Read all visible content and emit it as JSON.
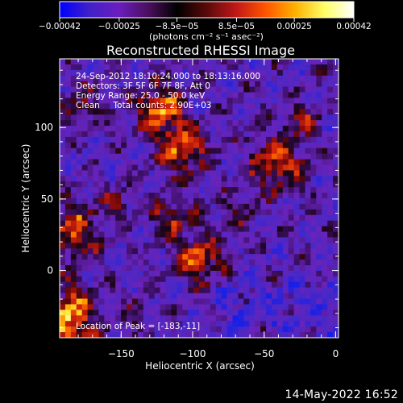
{
  "chart_data": {
    "type": "heatmap",
    "title": "Reconstructed RHESSI Image",
    "xlabel": "Heliocentric X (arcsec)",
    "ylabel": "Heliocentric Y (arcsec)",
    "xlim": [
      -193,
      2
    ],
    "ylim": [
      -47,
      148
    ],
    "xticks": [
      {
        "value": -150,
        "label": "−150"
      },
      {
        "value": -100,
        "label": "−100"
      },
      {
        "value": -50,
        "label": "−50"
      },
      {
        "value": 0,
        "label": "0"
      }
    ],
    "yticks": [
      {
        "value": 0,
        "label": "0"
      },
      {
        "value": 50,
        "label": "50"
      },
      {
        "value": 100,
        "label": "100"
      }
    ],
    "colorbar": {
      "range": [
        -0.00042,
        0.00042
      ],
      "ticks": [
        {
          "value": -0.00042,
          "label": "−0.00042"
        },
        {
          "value": -0.00025,
          "label": "−0.00025"
        },
        {
          "value": -8.5e-05,
          "label": "−8.5e−05"
        },
        {
          "value": 8.5e-05,
          "label": "8.5e−05"
        },
        {
          "value": 0.00025,
          "label": "0.00025"
        },
        {
          "value": 0.00042,
          "label": "0.00042"
        }
      ],
      "units": "(photons cm⁻² s⁻¹ asec⁻²)",
      "colors": [
        "#0000ff",
        "#4020c8",
        "#6a1ec0",
        "#4b0f5e",
        "#000000",
        "#5a0a0a",
        "#c01818",
        "#ff5500",
        "#ffb000",
        "#ffff66",
        "#ffffff"
      ]
    },
    "annotations": [
      "24-Sep-2012 18:10:24.000 to 18:13:16.000",
      "Detectors: 3F 5F 6F 7F 8F, Att 0",
      "Energy Range: 25.0 - 50.0 keV",
      "Clean     Total counts: 2.90E+03"
    ],
    "peak_label": "Location of Peak = [-183,-11]",
    "peak": [
      -183,
      -11
    ]
  },
  "footer": {
    "timestamp": "14-May-2022 16:52"
  }
}
